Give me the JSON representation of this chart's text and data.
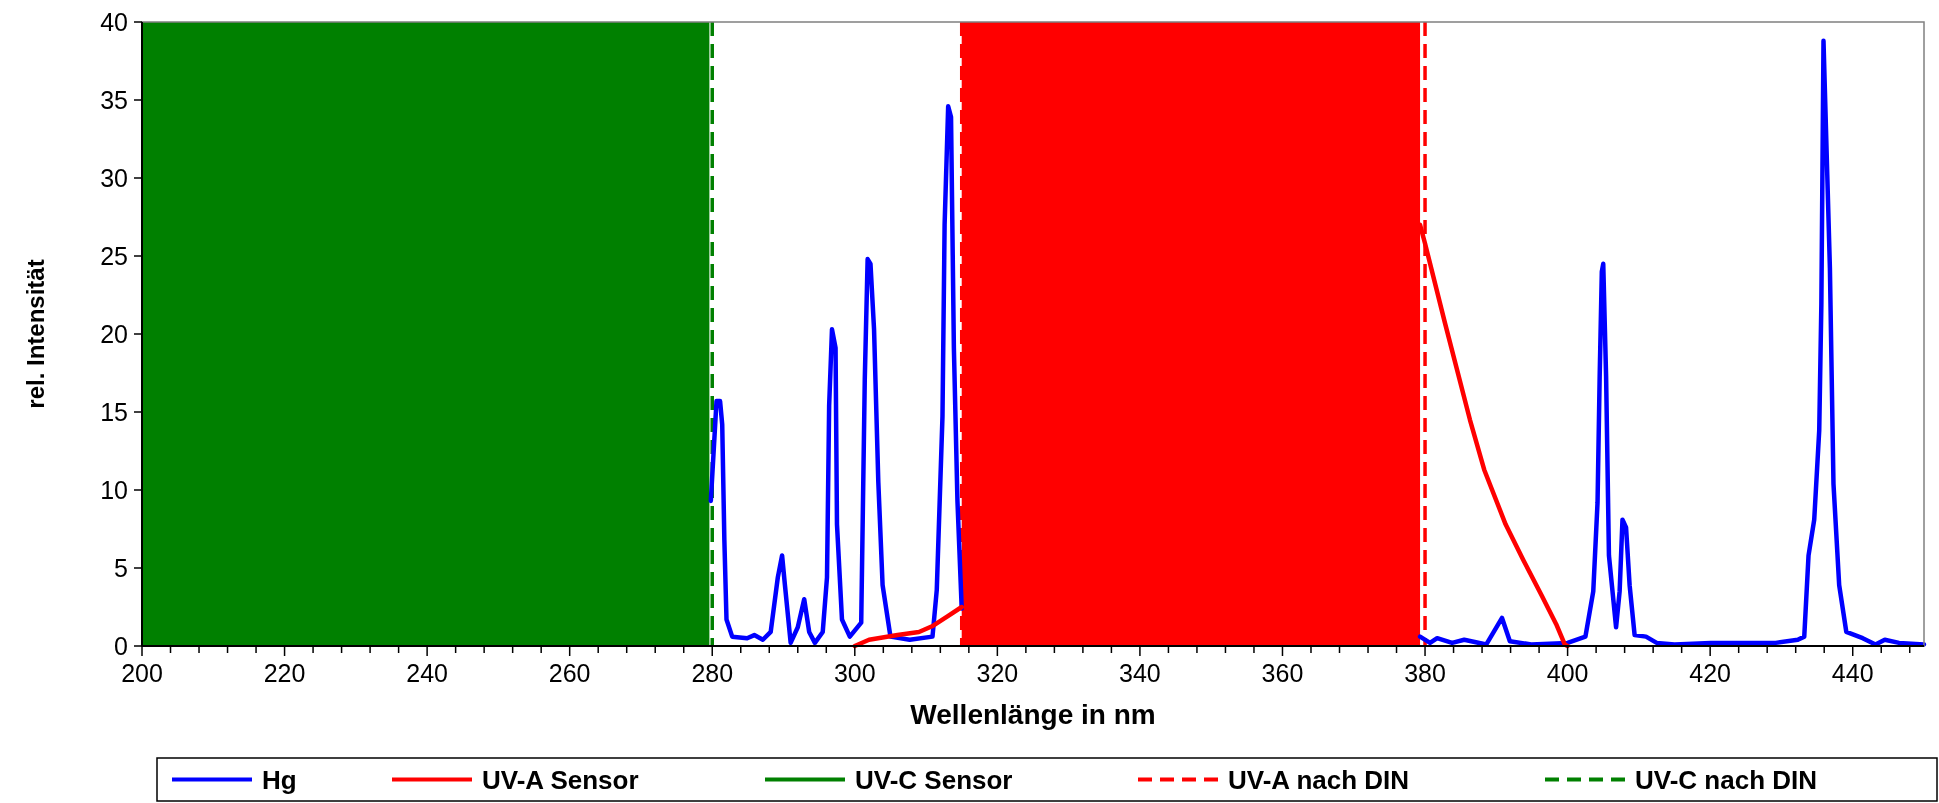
{
  "chart_data": {
    "type": "line",
    "xlabel": "Wellenlänge in nm",
    "ylabel": "rel. Intensität",
    "xlim": [
      200,
      450
    ],
    "ylim": [
      0,
      40
    ],
    "yticks": [
      0,
      5,
      10,
      15,
      20,
      25,
      30,
      35,
      40
    ],
    "xticks": [
      200,
      {
        "value": 204,
        "label": null
      },
      {
        "value": 208,
        "label": null
      },
      {
        "value": 212,
        "label": null
      },
      {
        "value": 216,
        "label": null
      },
      220,
      {
        "value": 224,
        "label": null
      },
      {
        "value": 228,
        "label": null
      },
      {
        "value": 232,
        "label": null
      },
      {
        "value": 236,
        "label": null
      },
      240,
      {
        "value": 244,
        "label": null
      },
      {
        "value": 248,
        "label": null
      },
      {
        "value": 252,
        "label": null
      },
      {
        "value": 256,
        "label": null
      },
      260,
      {
        "value": 264,
        "label": null
      },
      {
        "value": 268,
        "label": null
      },
      {
        "value": 272,
        "label": null
      },
      {
        "value": 276,
        "label": null
      },
      280,
      {
        "value": 284,
        "label": null
      },
      {
        "value": 288,
        "label": null
      },
      {
        "value": 292,
        "label": null
      },
      {
        "value": 296,
        "label": null
      },
      300,
      {
        "value": 304,
        "label": null
      },
      {
        "value": 308,
        "label": null
      },
      {
        "value": 312,
        "label": null
      },
      {
        "value": 316,
        "label": null
      },
      320,
      {
        "value": 324,
        "label": null
      },
      {
        "value": 328,
        "label": null
      },
      {
        "value": 332,
        "label": null
      },
      {
        "value": 336,
        "label": null
      },
      340,
      {
        "value": 344,
        "label": null
      },
      {
        "value": 348,
        "label": null
      },
      {
        "value": 352,
        "label": null
      },
      {
        "value": 356,
        "label": null
      },
      360,
      {
        "value": 364,
        "label": null
      },
      {
        "value": 368,
        "label": null
      },
      {
        "value": 372,
        "label": null
      },
      {
        "value": 376,
        "label": null
      },
      380,
      {
        "value": 384,
        "label": null
      },
      {
        "value": 388,
        "label": null
      },
      {
        "value": 392,
        "label": null
      },
      {
        "value": 396,
        "label": null
      },
      400,
      {
        "value": 404,
        "label": null
      },
      {
        "value": 408,
        "label": null
      },
      {
        "value": 412,
        "label": null
      },
      {
        "value": 416,
        "label": null
      },
      420,
      {
        "value": 424,
        "label": null
      },
      {
        "value": 428,
        "label": null
      },
      {
        "value": 432,
        "label": null
      },
      {
        "value": 436,
        "label": null
      },
      440,
      {
        "value": 444,
        "label": null
      },
      {
        "value": 448,
        "label": null
      }
    ],
    "grid": false,
    "legend": "bottom",
    "marker": "none",
    "bands": [
      {
        "axis": "x",
        "from": 315,
        "to": 379.3,
        "color": "#ff0000"
      }
    ],
    "ref_lines": [
      {
        "axis": "x",
        "value": 315,
        "color": "#ff0000",
        "line_style": "dashed"
      },
      {
        "axis": "x",
        "value": 380,
        "label": "UV-A nach DIN",
        "color": "#ff0000",
        "line_style": "dashed"
      },
      {
        "axis": "x",
        "value": 280,
        "label": "UV-C nach DIN",
        "color": "#008000",
        "line_style": "dashed"
      }
    ],
    "series": [
      {
        "name": "Hg",
        "color": "#0000ff",
        "x": [
          279.8,
          280.6,
          281.1,
          281.4,
          281.7,
          282.0,
          282.8,
          284.9,
          285.9,
          287.1,
          288.2,
          289.2,
          289.8,
          290.2,
          291.0,
          292.0,
          292.9,
          293.6,
          294.4,
          295.5,
          296.1,
          296.4,
          296.8,
          297.3,
          297.5,
          298.2,
          299.3,
          300.9,
          301.4,
          301.8,
          302.2,
          302.7,
          303.3,
          303.9,
          305.0,
          307.7,
          310.9,
          311.5,
          312.3,
          312.6,
          313.1,
          313.5,
          313.9,
          314.4,
          315.0,
          347,
          379.3,
          380.7,
          381.7,
          383.8,
          385.5,
          388.6,
          390.8,
          391.9,
          394.9,
          400.0,
          402.5,
          403.6,
          404.2,
          404.5,
          404.8,
          405.0,
          405.4,
          405.8,
          406.8,
          407.3,
          407.7,
          408.2,
          408.7,
          409.4,
          411.0,
          412.5,
          415.0,
          420.1,
          429.2,
          432.3,
          433.2,
          433.8,
          434.6,
          435.3,
          435.6,
          435.9,
          436.8,
          437.3,
          438.1,
          439.1,
          441.4,
          443.2,
          444.5,
          446.5,
          450
        ],
        "values": [
          9.3,
          15.7,
          15.7,
          14.2,
          6.8,
          1.7,
          0.6,
          0.5,
          0.7,
          0.4,
          0.9,
          4.4,
          5.8,
          3.9,
          0.2,
          1.2,
          3.0,
          0.9,
          0.2,
          0.9,
          4.4,
          15.4,
          20.3,
          19.1,
          7.8,
          1.7,
          0.6,
          1.5,
          17.1,
          24.8,
          24.5,
          20.3,
          10.5,
          3.9,
          0.6,
          0.4,
          0.6,
          3.6,
          14.7,
          27.0,
          34.6,
          33.9,
          19.1,
          9.3,
          2.4,
          null,
          0.6,
          0.2,
          0.5,
          0.2,
          0.4,
          0.1,
          1.8,
          0.3,
          0.1,
          0.2,
          0.6,
          3.5,
          9.2,
          17.3,
          24.0,
          24.5,
          17.3,
          5.8,
          1.2,
          3.5,
          8.1,
          7.6,
          3.9,
          0.7,
          0.6,
          0.2,
          0.1,
          0.2,
          0.2,
          0.4,
          0.6,
          5.8,
          8.1,
          13.8,
          21.9,
          38.8,
          24.2,
          10.4,
          3.9,
          0.9,
          0.5,
          0.1,
          0.4,
          0.2,
          0.1
        ]
      },
      {
        "name": "UV-A Sensor",
        "color": "#ff0000",
        "x": [
          300,
          302,
          306,
          309,
          311,
          313,
          315,
          347,
          379.3,
          380,
          382.8,
          386.3,
          388.3,
          391.3,
          393.8,
          396.4,
          398.4,
          399.6,
          400
        ],
        "values": [
          0,
          0.4,
          0.7,
          0.9,
          1.3,
          1.9,
          2.5,
          null,
          27.0,
          25.8,
          20.7,
          14.5,
          11.3,
          7.8,
          5.5,
          3.2,
          1.4,
          0.1,
          0
        ]
      },
      {
        "name": "UV-C Sensor",
        "type": "area",
        "color": "#008000",
        "x": [
          200,
          279.6
        ],
        "values": [
          40,
          40
        ]
      }
    ]
  }
}
